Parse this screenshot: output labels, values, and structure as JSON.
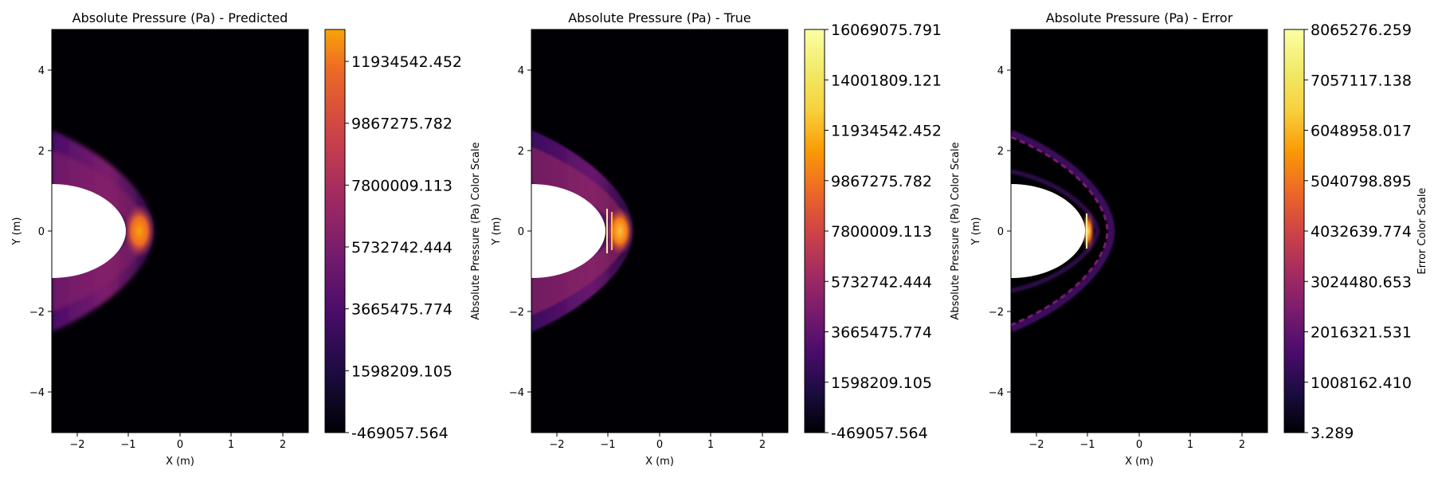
{
  "panels": [
    {
      "title": "Absolute Pressure (Pa) - Predicted",
      "xlabel": "X (m)",
      "ylabel": "Y (m)",
      "colorbar_label": "Absolute Pressure (Pa) Color Scale",
      "colorbar_range": [
        -469057.564,
        13000000
      ],
      "colorbar_ticks": [
        "-469057.564",
        "1598209.105",
        "3665475.774",
        "5732742.444",
        "7800009.113",
        "9867275.782",
        "11934542.452"
      ],
      "colorbar_tick_values": [
        -469057.564,
        1598209.105,
        3665475.774,
        5732742.444,
        7800009.113,
        9867275.782,
        11934542.452
      ],
      "colormap": "inferno-truncated"
    },
    {
      "title": "Absolute Pressure (Pa) - True",
      "xlabel": "X (m)",
      "ylabel": "Y (m)",
      "colorbar_label": "Absolute Pressure (Pa) Color Scale",
      "colorbar_range": [
        -469057.564,
        16069075.791
      ],
      "colorbar_ticks": [
        "-469057.564",
        "1598209.105",
        "3665475.774",
        "5732742.444",
        "7800009.113",
        "9867275.782",
        "11934542.452",
        "14001809.121",
        "16069075.791"
      ],
      "colorbar_tick_values": [
        -469057.564,
        1598209.105,
        3665475.774,
        5732742.444,
        7800009.113,
        9867275.782,
        11934542.452,
        14001809.121,
        16069075.791
      ],
      "colormap": "inferno"
    },
    {
      "title": "Absolute Pressure (Pa) - Error",
      "xlabel": "X (m)",
      "ylabel": "Y (m)",
      "colorbar_label": "Error Color Scale",
      "colorbar_range": [
        3.289,
        8065276.259
      ],
      "colorbar_ticks": [
        "3.289",
        "1008162.410",
        "2016321.531",
        "3024480.653",
        "4032639.774",
        "5040798.895",
        "6048958.017",
        "7057117.138",
        "8065276.259"
      ],
      "colorbar_tick_values": [
        3.289,
        1008162.41,
        2016321.531,
        3024480.653,
        4032639.774,
        5040798.895,
        6048958.017,
        7057117.138,
        8065276.259
      ],
      "colormap": "inferno"
    }
  ],
  "chart_data": [
    {
      "type": "heatmap",
      "title": "Absolute Pressure (Pa) - Predicted",
      "xlabel": "X (m)",
      "ylabel": "Y (m)",
      "xlim": [
        -2.5,
        2.5
      ],
      "ylim": [
        -5,
        5
      ],
      "xticks": [
        -2,
        -1,
        0,
        1,
        2
      ],
      "yticks": [
        -4,
        -2,
        0,
        2,
        4
      ],
      "colorbar_label": "Absolute Pressure (Pa) Color Scale",
      "value_range": [
        -469057.564,
        11934542.452
      ]
    },
    {
      "type": "heatmap",
      "title": "Absolute Pressure (Pa) - True",
      "xlabel": "X (m)",
      "ylabel": "Y (m)",
      "xlim": [
        -2.5,
        2.5
      ],
      "ylim": [
        -5,
        5
      ],
      "xticks": [
        -2,
        -1,
        0,
        1,
        2
      ],
      "yticks": [
        -4,
        -2,
        0,
        2,
        4
      ],
      "colorbar_label": "Absolute Pressure (Pa) Color Scale",
      "value_range": [
        -469057.564,
        16069075.791
      ]
    },
    {
      "type": "heatmap",
      "title": "Absolute Pressure (Pa) - Error",
      "xlabel": "X (m)",
      "ylabel": "Y (m)",
      "xlim": [
        -2.5,
        2.5
      ],
      "ylim": [
        -5,
        5
      ],
      "xticks": [
        -2,
        -1,
        0,
        1,
        2
      ],
      "yticks": [
        -4,
        -2,
        0,
        2,
        4
      ],
      "colorbar_label": "Error Color Scale",
      "value_range": [
        3.289,
        8065276.259
      ]
    }
  ]
}
